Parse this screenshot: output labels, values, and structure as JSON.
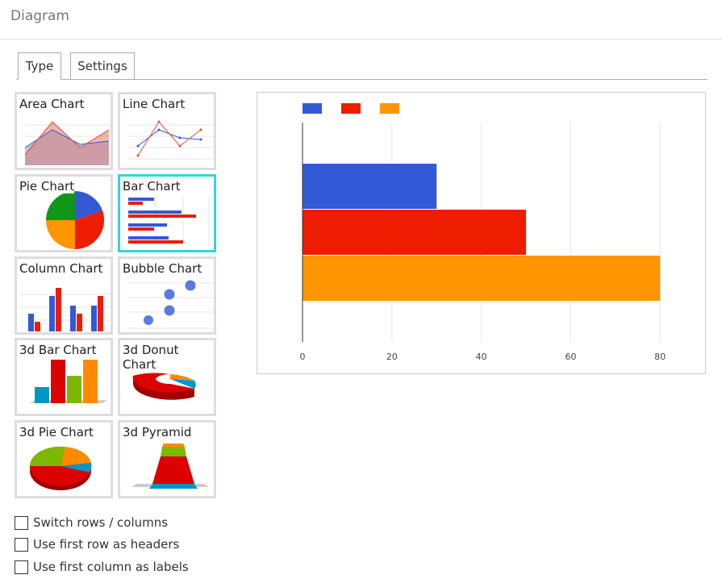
{
  "header": {
    "title": "Diagram"
  },
  "tabs": [
    {
      "label": "Type",
      "active": true
    },
    {
      "label": "Settings",
      "active": false
    }
  ],
  "chart_types": [
    {
      "label": "Area Chart",
      "icon": "area-chart-thumbnail"
    },
    {
      "label": "Line Chart",
      "icon": "line-chart-thumbnail"
    },
    {
      "label": "Pie Chart",
      "icon": "pie-chart-thumbnail"
    },
    {
      "label": "Bar Chart",
      "icon": "bar-chart-thumbnail",
      "selected": true
    },
    {
      "label": "Column Chart",
      "icon": "column-chart-thumbnail"
    },
    {
      "label": "Bubble Chart",
      "icon": "bubble-chart-thumbnail"
    },
    {
      "label": "3d Bar Chart",
      "icon": "3d-bar-chart-thumbnail"
    },
    {
      "label": "3d Donut Chart",
      "icon": "3d-donut-chart-thumbnail"
    },
    {
      "label": "3d Pie Chart",
      "icon": "3d-pie-chart-thumbnail"
    },
    {
      "label": "3d Pyramid",
      "icon": "3d-pyramid-thumbnail"
    }
  ],
  "options": [
    {
      "label": "Switch rows / columns",
      "checked": false
    },
    {
      "label": "Use first row as headers",
      "checked": false
    },
    {
      "label": "Use first column as labels",
      "checked": false
    }
  ],
  "colors": {
    "blue": "#3359d6",
    "red": "#ee1c00",
    "orange": "#ff9500",
    "selected_border": "#2fd6dd"
  },
  "chart_data": {
    "type": "bar",
    "orientation": "horizontal",
    "xlim": [
      0,
      85
    ],
    "xticks": [
      0,
      20,
      40,
      60,
      80
    ],
    "grid": true,
    "legend_position": "top-left",
    "series": [
      {
        "values": [
          30
        ],
        "color": "#3359d6"
      },
      {
        "values": [
          50
        ],
        "color": "#ee1c00"
      },
      {
        "values": [
          80
        ],
        "color": "#ff9500"
      }
    ]
  }
}
